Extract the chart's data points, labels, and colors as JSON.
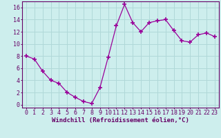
{
  "x": [
    0,
    1,
    2,
    3,
    4,
    5,
    6,
    7,
    8,
    9,
    10,
    11,
    12,
    13,
    14,
    15,
    16,
    17,
    18,
    19,
    20,
    21,
    22,
    23
  ],
  "y": [
    8.0,
    7.5,
    5.5,
    4.0,
    3.5,
    2.0,
    1.2,
    0.5,
    0.2,
    2.8,
    7.8,
    13.0,
    16.5,
    13.5,
    12.0,
    13.5,
    13.8,
    14.0,
    12.2,
    10.5,
    10.3,
    11.5,
    11.8,
    11.2
  ],
  "line_color": "#990099",
  "marker": "+",
  "marker_size": 4,
  "marker_ew": 1.2,
  "bg_color": "#cdeeed",
  "grid_color": "#b0d8d8",
  "xlabel": "Windchill (Refroidissement éolien,°C)",
  "xlim": [
    -0.5,
    23.5
  ],
  "ylim": [
    -0.5,
    17.0
  ],
  "xticks": [
    0,
    1,
    2,
    3,
    4,
    5,
    6,
    7,
    8,
    9,
    10,
    11,
    12,
    13,
    14,
    15,
    16,
    17,
    18,
    19,
    20,
    21,
    22,
    23
  ],
  "yticks": [
    0,
    2,
    4,
    6,
    8,
    10,
    12,
    14,
    16
  ],
  "tick_color": "#660066",
  "label_color": "#660066",
  "axis_color": "#660066",
  "xlabel_fontsize": 6.5,
  "tick_fontsize": 6.0
}
